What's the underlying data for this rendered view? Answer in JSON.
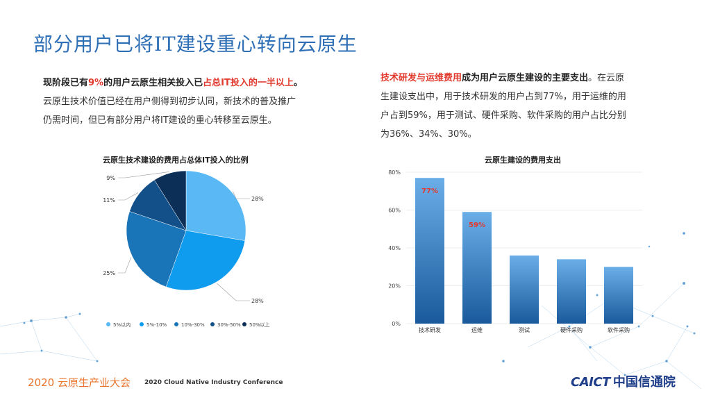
{
  "title": "部分用户已将IT建设重心转向云原生",
  "left_text": {
    "p1_a": "现阶段已有",
    "p1_pct": "9%",
    "p1_b": "的用户云原生相关投入已",
    "p1_hl": "占总IT投入的一半以上",
    "p1_end": "。",
    "line2": "云原生技术价值已经在用户侧得到初步认同，新技术的普及推广",
    "line3": "仍需时间，但已有部分用户将IT建设的重心转移至云原生。"
  },
  "right_text": {
    "hl": "技术研发与运维费用",
    "a": "成为用户云原生建设的主要支出",
    "line1_end": "。在云原",
    "line2": "生建设支出中，用于技术研发的用户占到77%，用于运维的用",
    "line3": "户占到59%，用于测试、硬件采购、软件采购的用户占比分别",
    "line4": "为36%、34%、30%。"
  },
  "chart_data": [
    {
      "type": "pie",
      "title": "云原生技术建设的费用占总体IT投入的比例",
      "categories": [
        "5%以内",
        "5%-10%",
        "10%-30%",
        "30%-50%",
        "50%以上"
      ],
      "values": [
        28,
        28,
        25,
        11,
        9
      ],
      "value_labels": [
        "28%",
        "28%",
        "25%",
        "11%",
        "9%"
      ],
      "colors": [
        "#5ab8f4",
        "#0f9bee",
        "#1a74b8",
        "#13508a",
        "#0b2f57"
      ],
      "legend_position": "bottom"
    },
    {
      "type": "bar",
      "title": "云原生建设的费用支出",
      "categories": [
        "技术研发",
        "运维",
        "测试",
        "硬件采购",
        "软件采购"
      ],
      "values": [
        77,
        59,
        36,
        34,
        30
      ],
      "data_labels": [
        "77%",
        "59%",
        "",
        "",
        ""
      ],
      "ylim": [
        0,
        80
      ],
      "yticks": [
        "0%",
        "20%",
        "40%",
        "60%",
        "80%"
      ],
      "ytick_values": [
        0,
        20,
        40,
        60,
        80
      ],
      "grid": true,
      "colors": {
        "bar_top": "#6aaee8",
        "bar_bottom": "#1a5a9c",
        "label": "#e23a2e"
      }
    }
  ],
  "footer": {
    "event_cn": "2020 云原生产业大会",
    "event_en": "2020 Cloud Native Industry Conference",
    "logo_en": "CAICT",
    "logo_cn": "中国信通院"
  }
}
